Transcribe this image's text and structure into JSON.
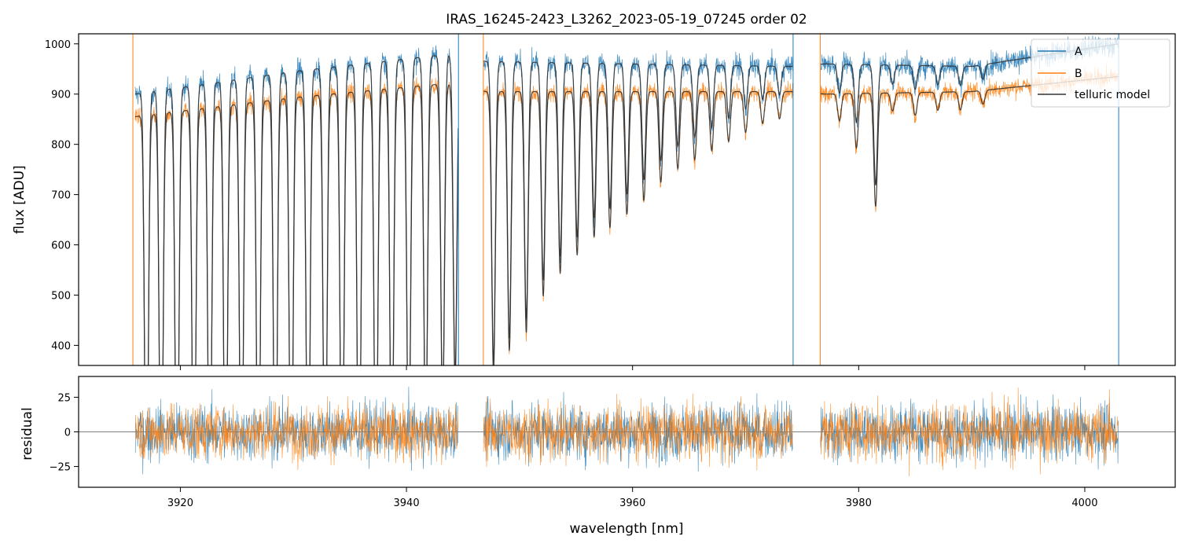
{
  "chart_data": [
    {
      "type": "line",
      "panel": "top",
      "title": "IRAS_16245-2423_L3262_2023-05-19_07245  order 02",
      "xlabel": "",
      "ylabel": "flux [ADU]",
      "xlim": [
        3911,
        4008
      ],
      "ylim": [
        360,
        1020
      ],
      "xticks": [
        3920,
        3940,
        3960,
        3980,
        4000
      ],
      "yticks": [
        400,
        500,
        600,
        700,
        800,
        900,
        1000
      ],
      "grid": false,
      "legend_position": "top-right",
      "segments": [
        [
          3916.0,
          3944.6
        ],
        [
          3946.8,
          3974.2
        ],
        [
          3976.6,
          4003.0
        ]
      ],
      "series": [
        {
          "name": "A",
          "color": "#1f77b4",
          "continuum": [
            [
              3916,
              900
            ],
            [
              3930,
              945
            ],
            [
              3944,
              980
            ],
            [
              3947,
              965
            ],
            [
              3960,
              960
            ],
            [
              3974,
              955
            ],
            [
              3977,
              960
            ],
            [
              3990,
              955
            ],
            [
              4003,
              1000
            ]
          ]
        },
        {
          "name": "B",
          "color": "#ff7f0e",
          "continuum": [
            [
              3916,
              855
            ],
            [
              3930,
              893
            ],
            [
              3944,
              922
            ],
            [
              3947,
              905
            ],
            [
              3960,
              905
            ],
            [
              3974,
              905
            ],
            [
              3977,
              900
            ],
            [
              3990,
              905
            ],
            [
              4003,
              935
            ]
          ]
        },
        {
          "name": "telluric model",
          "color": "#333333"
        }
      ],
      "absorption_lines": [
        {
          "x": 3917.0,
          "depth": 1.0
        },
        {
          "x": 3918.3,
          "depth": 1.0
        },
        {
          "x": 3919.7,
          "depth": 1.0
        },
        {
          "x": 3921.2,
          "depth": 1.0
        },
        {
          "x": 3922.6,
          "depth": 1.0
        },
        {
          "x": 3924.0,
          "depth": 1.0
        },
        {
          "x": 3925.4,
          "depth": 1.0
        },
        {
          "x": 3926.9,
          "depth": 1.0
        },
        {
          "x": 3928.4,
          "depth": 1.0
        },
        {
          "x": 3929.8,
          "depth": 1.0
        },
        {
          "x": 3931.3,
          "depth": 1.0
        },
        {
          "x": 3932.8,
          "depth": 1.0
        },
        {
          "x": 3934.3,
          "depth": 1.0
        },
        {
          "x": 3935.8,
          "depth": 0.98
        },
        {
          "x": 3937.3,
          "depth": 0.95
        },
        {
          "x": 3938.7,
          "depth": 0.9
        },
        {
          "x": 3940.2,
          "depth": 0.85
        },
        {
          "x": 3941.7,
          "depth": 0.8
        },
        {
          "x": 3943.2,
          "depth": 0.72
        },
        {
          "x": 3944.3,
          "depth": 0.65
        },
        {
          "x": 3947.7,
          "depth": 0.62
        },
        {
          "x": 3949.1,
          "depth": 0.57
        },
        {
          "x": 3950.6,
          "depth": 0.53
        },
        {
          "x": 3952.1,
          "depth": 0.45
        },
        {
          "x": 3953.6,
          "depth": 0.4
        },
        {
          "x": 3955.1,
          "depth": 0.36
        },
        {
          "x": 3956.6,
          "depth": 0.32
        },
        {
          "x": 3958.0,
          "depth": 0.3
        },
        {
          "x": 3959.5,
          "depth": 0.27
        },
        {
          "x": 3961.0,
          "depth": 0.24
        },
        {
          "x": 3962.5,
          "depth": 0.2
        },
        {
          "x": 3964.0,
          "depth": 0.17
        },
        {
          "x": 3965.5,
          "depth": 0.15
        },
        {
          "x": 3967.0,
          "depth": 0.13
        },
        {
          "x": 3968.5,
          "depth": 0.11
        },
        {
          "x": 3970.0,
          "depth": 0.09
        },
        {
          "x": 3971.5,
          "depth": 0.07
        },
        {
          "x": 3973.0,
          "depth": 0.06
        },
        {
          "x": 3978.3,
          "depth": 0.06
        },
        {
          "x": 3979.8,
          "depth": 0.12
        },
        {
          "x": 3981.5,
          "depth": 0.25
        },
        {
          "x": 3983.0,
          "depth": 0.04
        },
        {
          "x": 3985.0,
          "depth": 0.05
        },
        {
          "x": 3987.0,
          "depth": 0.04
        },
        {
          "x": 3989.0,
          "depth": 0.04
        },
        {
          "x": 3991.0,
          "depth": 0.03
        }
      ],
      "edge_spikes": [
        3915.8,
        3944.6,
        3946.8,
        3974.2,
        3976.6,
        4003.0
      ]
    },
    {
      "type": "line",
      "panel": "bottom",
      "xlabel": "wavelength [nm]",
      "ylabel": "residual",
      "xlim": [
        3911,
        4008
      ],
      "ylim": [
        -40,
        40
      ],
      "xticks": [
        3920,
        3940,
        3960,
        3980,
        4000
      ],
      "xtick_labels": [
        "3920",
        "3940",
        "3960",
        "3980",
        "4000"
      ],
      "yticks": [
        -25,
        0,
        25
      ],
      "ytick_labels": [
        "−25",
        "0",
        "25"
      ],
      "zero_line": true,
      "noise_sigma": 13,
      "series": [
        {
          "name": "A",
          "color": "#1f77b4"
        },
        {
          "name": "B",
          "color": "#ff7f0e"
        }
      ]
    }
  ]
}
